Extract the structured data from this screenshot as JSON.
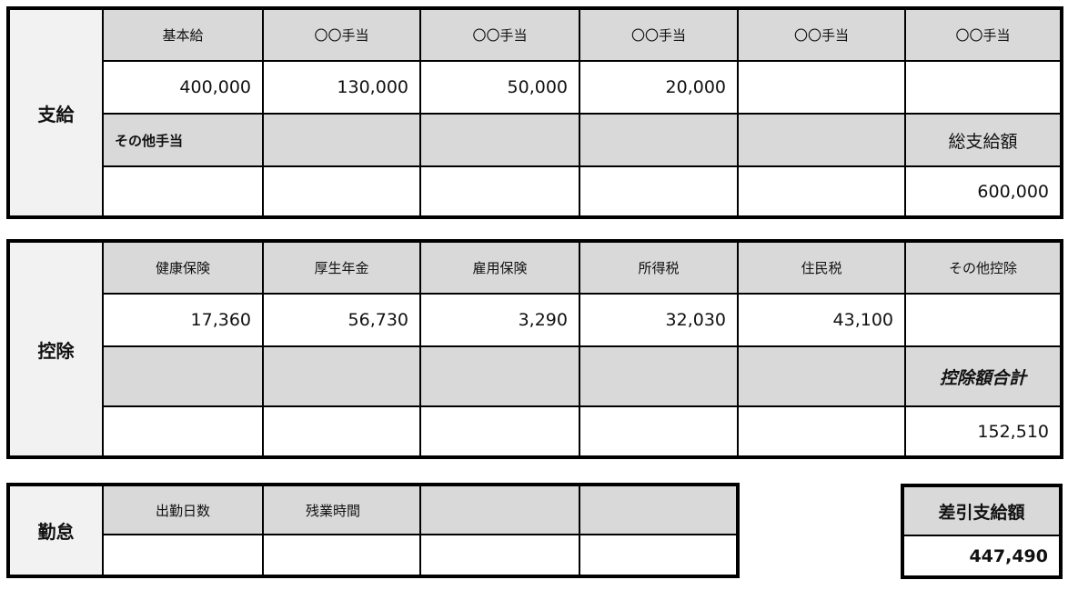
{
  "payment": {
    "label": "支給",
    "headers": [
      "基本給",
      "〇〇手当",
      "〇〇手当",
      "〇〇手当",
      "〇〇手当",
      "〇〇手当"
    ],
    "values": [
      "400,000",
      "130,000",
      "50,000",
      "20,000",
      "",
      ""
    ],
    "headers2": [
      "その他手当",
      "",
      "",
      "",
      "",
      "総支給額"
    ],
    "values2": [
      "",
      "",
      "",
      "",
      "",
      "600,000"
    ]
  },
  "deduction": {
    "label": "控除",
    "headers": [
      "健康保険",
      "厚生年金",
      "雇用保険",
      "所得税",
      "住民税",
      "その他控除"
    ],
    "values": [
      "17,360",
      "56,730",
      "3,290",
      "32,030",
      "43,100",
      ""
    ],
    "headers2": [
      "",
      "",
      "",
      "",
      "",
      "控除額合計"
    ],
    "values2": [
      "",
      "",
      "",
      "",
      "",
      "152,510"
    ]
  },
  "attendance": {
    "label": "勤怠",
    "headers": [
      "出勤日数",
      "残業時間",
      "",
      ""
    ],
    "values": [
      "",
      "",
      "",
      ""
    ]
  },
  "net_pay": {
    "label": "差引支給額",
    "value": "447,490"
  },
  "colors": {
    "header_bg": "#d9d9d9",
    "label_bg": "#f2f2f2",
    "border": "#000000"
  }
}
